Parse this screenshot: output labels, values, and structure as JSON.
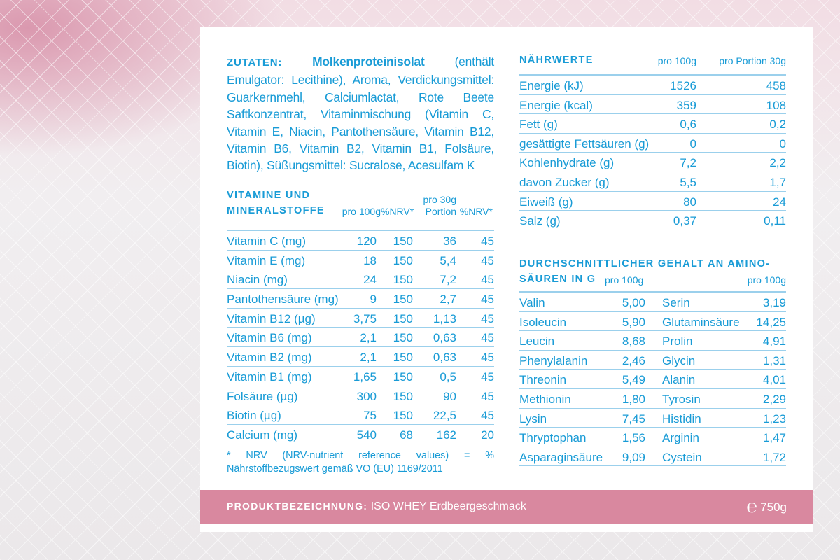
{
  "ingredients": {
    "label": "ZUTATEN:",
    "lead": "Molkenproteinisolat",
    "text": "(enthält Emulgator: Lecithine), Aroma, Verdickungsmittel: Guarkernmehl, Calciumlactat, Rote Beete Saftkonzentrat, Vitaminmischung (Vitamin C, Vitamin E, Niacin, Pantothensäure, Vitamin B12, Vitamin B6, Vitamin B2, Vitamin B1, Folsäure, Biotin), Süßungsmittel: Sucralose, Acesulfam K"
  },
  "vitamins": {
    "title_line1": "VITAMINE UND",
    "title_line2": "MINERALSTOFFE",
    "col_per100": "pro 100g",
    "col_nrv1": "%NRV*",
    "col_portion_l1": "pro 30g",
    "col_portion_l2": "Portion",
    "col_nrv2": "%NRV*",
    "rows": [
      {
        "name": "Vitamin C (mg)",
        "per100": "120",
        "nrv": "150",
        "portion": "36",
        "nrv2": "45"
      },
      {
        "name": "Vitamin E (mg)",
        "per100": "18",
        "nrv": "150",
        "portion": "5,4",
        "nrv2": "45"
      },
      {
        "name": "Niacin (mg)",
        "per100": "24",
        "nrv": "150",
        "portion": "7,2",
        "nrv2": "45"
      },
      {
        "name": "Pantothensäure (mg)",
        "per100": "9",
        "nrv": "150",
        "portion": "2,7",
        "nrv2": "45"
      },
      {
        "name": "Vitamin B12 (µg)",
        "per100": "3,75",
        "nrv": "150",
        "portion": "1,13",
        "nrv2": "45"
      },
      {
        "name": "Vitamin B6 (mg)",
        "per100": "2,1",
        "nrv": "150",
        "portion": "0,63",
        "nrv2": "45"
      },
      {
        "name": "Vitamin B2 (mg)",
        "per100": "2,1",
        "nrv": "150",
        "portion": "0,63",
        "nrv2": "45"
      },
      {
        "name": "Vitamin B1 (mg)",
        "per100": "1,65",
        "nrv": "150",
        "portion": "0,5",
        "nrv2": "45"
      },
      {
        "name": "Folsäure (µg)",
        "per100": "300",
        "nrv": "150",
        "portion": "90",
        "nrv2": "45"
      },
      {
        "name": "Biotin (µg)",
        "per100": "75",
        "nrv": "150",
        "portion": "22,5",
        "nrv2": "45"
      },
      {
        "name": "Calcium (mg)",
        "per100": "540",
        "nrv": "68",
        "portion": "162",
        "nrv2": "20"
      }
    ],
    "footnote": "* NRV (NRV-nutrient reference values) = % Nährstoffbezugswert gemäß VO (EU) 1169/2011"
  },
  "nutrition": {
    "title": "NÄHRWERTE",
    "col_per100": "pro 100g",
    "col_portion": "pro Portion 30g",
    "rows": [
      {
        "name": "Energie (kJ)",
        "per100": "1526",
        "portion": "458"
      },
      {
        "name": "Energie (kcal)",
        "per100": "359",
        "portion": "108"
      },
      {
        "name": "Fett (g)",
        "per100": "0,6",
        "portion": "0,2"
      },
      {
        "name": "gesättigte Fettsäuren (g)",
        "per100": "0",
        "portion": "0"
      },
      {
        "name": "Kohlenhydrate (g)",
        "per100": "7,2",
        "portion": "2,2"
      },
      {
        "name": "davon Zucker (g)",
        "per100": "5,5",
        "portion": "1,7"
      },
      {
        "name": "Eiweiß (g)",
        "per100": "80",
        "portion": "24"
      },
      {
        "name": "Salz (g)",
        "per100": "0,37",
        "portion": "0,11"
      }
    ]
  },
  "amino": {
    "title_line1": "DURCHSCHNITTLICHER GEHALT AN AMINO-",
    "title_line2": "SÄUREN IN G",
    "col_left": "pro 100g",
    "col_right": "pro 100g",
    "rows": [
      {
        "a": "Valin",
        "av": "5,00",
        "b": "Serin",
        "bv": "3,19"
      },
      {
        "a": "Isoleucin",
        "av": "5,90",
        "b": "Glutaminsäure",
        "bv": "14,25"
      },
      {
        "a": "Leucin",
        "av": "8,68",
        "b": "Prolin",
        "bv": "4,91"
      },
      {
        "a": "Phenylalanin",
        "av": "2,46",
        "b": "Glycin",
        "bv": "1,31"
      },
      {
        "a": "Threonin",
        "av": "5,49",
        "b": "Alanin",
        "bv": "4,01"
      },
      {
        "a": "Methionin",
        "av": "1,80",
        "b": "Tyrosin",
        "bv": "2,29"
      },
      {
        "a": "Lysin",
        "av": "7,45",
        "b": "Histidin",
        "bv": "1,23"
      },
      {
        "a": "Thryptophan",
        "av": "1,56",
        "b": "Arginin",
        "bv": "1,47"
      },
      {
        "a": "Asparaginsäure",
        "av": "9,09",
        "b": "Cystein",
        "bv": "1,72"
      }
    ]
  },
  "footer": {
    "label": "PRODUKTBEZEICHNUNG:",
    "product": "ISO WHEY Erdbeergeschmack",
    "estimated_sign": "℮",
    "weight": "750g"
  },
  "colors": {
    "text": "#189bd6",
    "rule": "#9bd0ec",
    "footer_bg": "#d9889f"
  }
}
